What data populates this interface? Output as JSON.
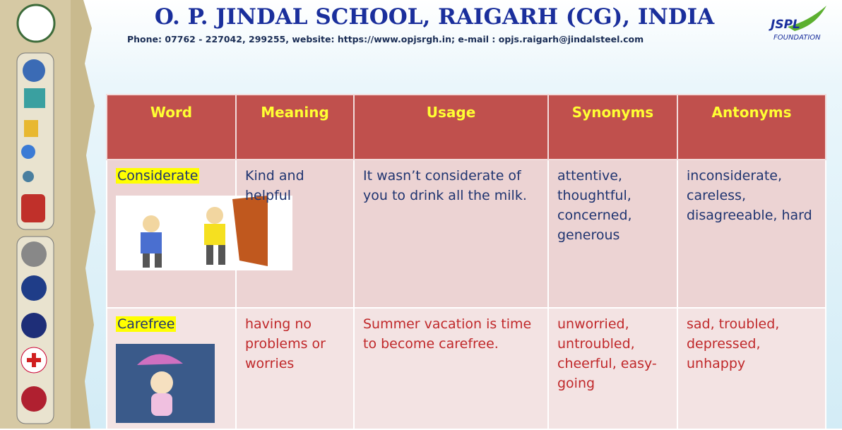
{
  "header": {
    "title": "O. P. JINDAL SCHOOL, RAIGARH (CG), INDIA",
    "contact": "Phone: 07762 - 227042, 299255, website: https://www.opjsrgh.in; e-mail : opjs.raigarh@jindalsteel.com",
    "logo": {
      "name": "JSPL",
      "subtitle": "FOUNDATION"
    }
  },
  "table": {
    "headers": [
      "Word",
      "Meaning",
      "Usage",
      "Synonyms",
      "Antonyms"
    ],
    "rows": [
      [
        "Considerate",
        "Kind and helpful",
        "It wasn’t considerate of you to drink all the milk.",
        "attentive, thoughtful, concerned, generous",
        "inconsiderate, careless, disagreeable, hard"
      ],
      [
        "Carefree",
        "having no problems or worries",
        "Summer vacation is time to become carefree.",
        "unworried, untroubled, cheerful, easy-going",
        "sad, troubled, depressed, unhappy"
      ]
    ]
  }
}
